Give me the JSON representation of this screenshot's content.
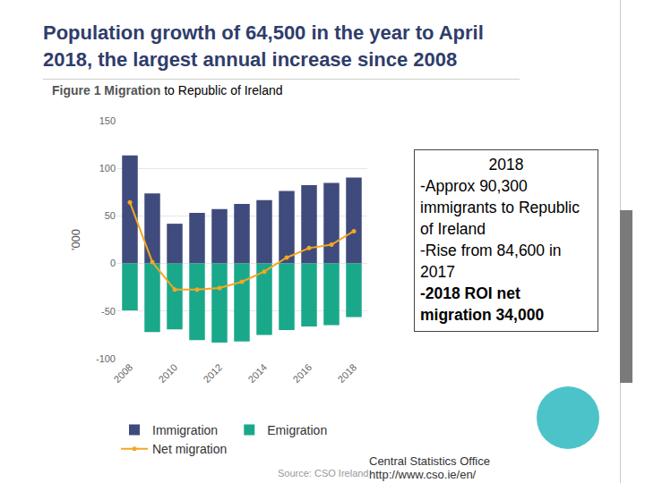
{
  "chart_data": {
    "type": "bar",
    "title": "Population growth of 64,500 in the year to April 2018, the largest annual increase since 2008",
    "subtitle": "Figure 1 Migration",
    "annotations": [
      "to Republic of Ireland"
    ],
    "y_label": "'000",
    "source": "Source: CSO Ireland",
    "categories": [
      "2008",
      null,
      "2010",
      null,
      "2012",
      null,
      "2014",
      null,
      "2016",
      null,
      "2018"
    ],
    "series": [
      {
        "name": "Immigration",
        "type": "bar",
        "color": "#3f4b7c",
        "values": [
          113.5,
          73.7,
          41.8,
          53.3,
          57.3,
          62.7,
          66.5,
          76.2,
          82.3,
          84.6,
          90.3
        ]
      },
      {
        "name": "Emigration",
        "type": "bar",
        "color": "#1aa88a",
        "values": [
          -49.2,
          -72.0,
          -69.2,
          -80.6,
          -83.0,
          -81.9,
          -75.0,
          -70.0,
          -66.2,
          -64.8,
          -56.3
        ]
      },
      {
        "name": "Net migration",
        "type": "line",
        "color": "#f5a623",
        "marker": "circle",
        "values": [
          64.3,
          1.6,
          -27.5,
          -27.4,
          -25.7,
          -19.2,
          -8.5,
          6.2,
          16.2,
          19.8,
          34.0
        ]
      }
    ],
    "ylim": [
      -100,
      150
    ],
    "yticks": [
      -100,
      -50,
      0,
      50,
      100,
      150
    ],
    "grid": true,
    "legend": "bottom"
  },
  "slide": {
    "textbox": {
      "heading": "2018",
      "lines": [
        "-Approx 90,300 immigrants to Republic of Ireland",
        "-Rise from 84,600 in 2017"
      ],
      "emphasis": "-2018 ROI net migration 34,000"
    },
    "footer": [
      "Central Statistics Office",
      "http://www.cso.ie/en/"
    ]
  }
}
